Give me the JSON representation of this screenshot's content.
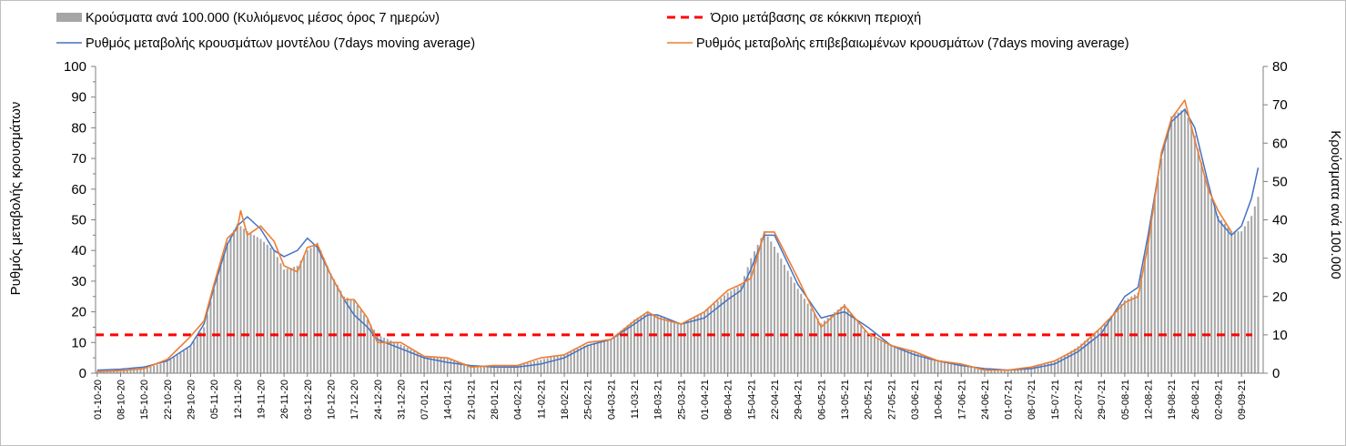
{
  "chart_data": {
    "type": "bar+line",
    "grid": false,
    "legend_position": "top",
    "colors": {
      "bars": "#a6a6a6",
      "threshold": "#ff0000",
      "model_line": "#4472c4",
      "confirmed_line": "#ed7d31"
    },
    "left_axis": {
      "label": "Ρυθμός μεταβολής κρουσμάτων",
      "min": 0,
      "max": 100,
      "ticks": [
        "0",
        "10",
        "20",
        "30",
        "40",
        "50",
        "60",
        "70",
        "80",
        "90",
        "100"
      ]
    },
    "right_axis": {
      "label": "Κρούσματα ανά 100.000",
      "min": 0,
      "max": 80,
      "ticks": [
        "0",
        "10",
        "20",
        "30",
        "40",
        "50",
        "60",
        "70",
        "80"
      ]
    },
    "x_axis": {
      "start": "2020-10-01",
      "end": "2021-09-15",
      "tick_labels": [
        "01-10-20",
        "08-10-20",
        "15-10-20",
        "22-10-20",
        "29-10-20",
        "05-11-20",
        "12-11-20",
        "19-11-20",
        "26-11-20",
        "03-12-20",
        "10-12-20",
        "17-12-20",
        "24-12-20",
        "31-12-20",
        "07-01-21",
        "14-01-21",
        "21-01-21",
        "28-01-21",
        "04-02-21",
        "11-02-21",
        "18-02-21",
        "25-02-21",
        "04-03-21",
        "11-03-21",
        "18-03-21",
        "25-03-21",
        "01-04-21",
        "08-04-21",
        "15-04-21",
        "22-04-21",
        "29-04-21",
        "06-05-21",
        "13-05-21",
        "20-05-21",
        "27-05-21",
        "03-06-21",
        "10-06-21",
        "17-06-21",
        "24-06-21",
        "01-07-21",
        "08-07-21",
        "15-07-21",
        "22-07-21",
        "29-07-21",
        "05-08-21",
        "12-08-21",
        "19-08-21",
        "26-08-21",
        "02-09-21",
        "09-09-21"
      ]
    },
    "legend": [
      {
        "key": "bars",
        "label": "Κρούσματα ανά 100.000 (Κυλιόμενος μέσος όρος 7 ημερών)"
      },
      {
        "key": "threshold",
        "label": "Όριο μετάβασης σε κόκκινη περιοχή"
      },
      {
        "key": "model_line",
        "label": "Ρυθμός μεταβολής κρουσμάτων μοντέλου (7days moving average)"
      },
      {
        "key": "confirmed_line",
        "label": "Ρυθμός μεταβολής επιβεβαιωμένων κρουσμάτων (7days moving average)"
      }
    ],
    "series": [
      {
        "name": "Κρούσματα ανά 100.000 (Κυλιόμενος μέσος όρος 7 ημερών)",
        "axis": "right",
        "kind": "bar",
        "points": [
          [
            "2020-10-01",
            0.6
          ],
          [
            "2020-10-08",
            0.7
          ],
          [
            "2020-10-15",
            1.2
          ],
          [
            "2020-10-22",
            3.0
          ],
          [
            "2020-10-29",
            7.0
          ],
          [
            "2020-11-02",
            12.0
          ],
          [
            "2020-11-05",
            22.0
          ],
          [
            "2020-11-09",
            34.0
          ],
          [
            "2020-11-12",
            39.0
          ],
          [
            "2020-11-15",
            37.0
          ],
          [
            "2020-11-19",
            35.0
          ],
          [
            "2020-11-23",
            32.0
          ],
          [
            "2020-11-26",
            27.0
          ],
          [
            "2020-11-30",
            28.0
          ],
          [
            "2020-12-03",
            32.0
          ],
          [
            "2020-12-06",
            34.0
          ],
          [
            "2020-12-10",
            26.0
          ],
          [
            "2020-12-14",
            20.0
          ],
          [
            "2020-12-17",
            19.0
          ],
          [
            "2020-12-21",
            14.0
          ],
          [
            "2020-12-24",
            10.0
          ],
          [
            "2020-12-31",
            7.5
          ],
          [
            "2021-01-07",
            4.5
          ],
          [
            "2021-01-14",
            4.0
          ],
          [
            "2021-01-21",
            2.0
          ],
          [
            "2021-01-28",
            1.5
          ],
          [
            "2021-02-04",
            2.0
          ],
          [
            "2021-02-11",
            3.5
          ],
          [
            "2021-02-18",
            5.0
          ],
          [
            "2021-02-25",
            7.5
          ],
          [
            "2021-03-04",
            9.0
          ],
          [
            "2021-03-11",
            14.0
          ],
          [
            "2021-03-15",
            16.0
          ],
          [
            "2021-03-18",
            15.0
          ],
          [
            "2021-03-25",
            13.0
          ],
          [
            "2021-04-01",
            16.0
          ],
          [
            "2021-04-08",
            21.0
          ],
          [
            "2021-04-12",
            23.0
          ],
          [
            "2021-04-15",
            30.0
          ],
          [
            "2021-04-19",
            37.0
          ],
          [
            "2021-04-22",
            33.0
          ],
          [
            "2021-04-29",
            22.0
          ],
          [
            "2021-05-06",
            13.0
          ],
          [
            "2021-05-13",
            18.0
          ],
          [
            "2021-05-20",
            10.0
          ],
          [
            "2021-05-27",
            7.5
          ],
          [
            "2021-06-03",
            5.5
          ],
          [
            "2021-06-10",
            3.5
          ],
          [
            "2021-06-17",
            2.5
          ],
          [
            "2021-06-24",
            1.0
          ],
          [
            "2021-07-01",
            0.8
          ],
          [
            "2021-07-08",
            1.8
          ],
          [
            "2021-07-15",
            3.0
          ],
          [
            "2021-07-22",
            7.0
          ],
          [
            "2021-07-29",
            12.0
          ],
          [
            "2021-08-05",
            19.0
          ],
          [
            "2021-08-09",
            21.0
          ],
          [
            "2021-08-12",
            35.0
          ],
          [
            "2021-08-16",
            56.0
          ],
          [
            "2021-08-19",
            67.0
          ],
          [
            "2021-08-23",
            69.0
          ],
          [
            "2021-08-26",
            62.0
          ],
          [
            "2021-08-30",
            48.0
          ],
          [
            "2021-09-02",
            41.0
          ],
          [
            "2021-09-06",
            37.0
          ],
          [
            "2021-09-09",
            37.0
          ],
          [
            "2021-09-12",
            41.0
          ],
          [
            "2021-09-14",
            46.0
          ]
        ]
      },
      {
        "name": "Όριο μετάβασης σε κόκκινη περιοχή",
        "axis": "left",
        "kind": "dashed-line",
        "value": 12.5
      },
      {
        "name": "Ρυθμός μεταβολής κρουσμάτων μοντέλου (7days moving average)",
        "axis": "left",
        "kind": "line",
        "points": [
          [
            "2020-10-01",
            1
          ],
          [
            "2020-10-08",
            1.3
          ],
          [
            "2020-10-15",
            2
          ],
          [
            "2020-10-22",
            4
          ],
          [
            "2020-10-29",
            9
          ],
          [
            "2020-11-02",
            16
          ],
          [
            "2020-11-05",
            28
          ],
          [
            "2020-11-09",
            42
          ],
          [
            "2020-11-12",
            48
          ],
          [
            "2020-11-15",
            51
          ],
          [
            "2020-11-19",
            47
          ],
          [
            "2020-11-23",
            40
          ],
          [
            "2020-11-26",
            38
          ],
          [
            "2020-11-30",
            40
          ],
          [
            "2020-12-03",
            44
          ],
          [
            "2020-12-06",
            41
          ],
          [
            "2020-12-10",
            32
          ],
          [
            "2020-12-14",
            24
          ],
          [
            "2020-12-17",
            19
          ],
          [
            "2020-12-21",
            15
          ],
          [
            "2020-12-24",
            11
          ],
          [
            "2020-12-31",
            8
          ],
          [
            "2021-01-07",
            5
          ],
          [
            "2021-01-14",
            3.5
          ],
          [
            "2021-01-21",
            2.5
          ],
          [
            "2021-01-28",
            2
          ],
          [
            "2021-02-04",
            2
          ],
          [
            "2021-02-11",
            3
          ],
          [
            "2021-02-18",
            5
          ],
          [
            "2021-02-25",
            9
          ],
          [
            "2021-03-04",
            11
          ],
          [
            "2021-03-11",
            16
          ],
          [
            "2021-03-15",
            19
          ],
          [
            "2021-03-18",
            19
          ],
          [
            "2021-03-25",
            16
          ],
          [
            "2021-04-01",
            18
          ],
          [
            "2021-04-08",
            24
          ],
          [
            "2021-04-12",
            27
          ],
          [
            "2021-04-15",
            34
          ],
          [
            "2021-04-19",
            45
          ],
          [
            "2021-04-22",
            45
          ],
          [
            "2021-04-29",
            29
          ],
          [
            "2021-05-06",
            18
          ],
          [
            "2021-05-13",
            20
          ],
          [
            "2021-05-20",
            15
          ],
          [
            "2021-05-27",
            9
          ],
          [
            "2021-06-03",
            6
          ],
          [
            "2021-06-10",
            4
          ],
          [
            "2021-06-17",
            2.5
          ],
          [
            "2021-06-24",
            1.5
          ],
          [
            "2021-07-01",
            1
          ],
          [
            "2021-07-08",
            1.5
          ],
          [
            "2021-07-15",
            3
          ],
          [
            "2021-07-22",
            7
          ],
          [
            "2021-07-29",
            13
          ],
          [
            "2021-08-05",
            25
          ],
          [
            "2021-08-09",
            28
          ],
          [
            "2021-08-12",
            45
          ],
          [
            "2021-08-16",
            71
          ],
          [
            "2021-08-19",
            82
          ],
          [
            "2021-08-23",
            86
          ],
          [
            "2021-08-26",
            80
          ],
          [
            "2021-08-30",
            62
          ],
          [
            "2021-09-02",
            50
          ],
          [
            "2021-09-06",
            45
          ],
          [
            "2021-09-09",
            48
          ],
          [
            "2021-09-12",
            57
          ],
          [
            "2021-09-14",
            67
          ]
        ]
      },
      {
        "name": "Ρυθμός μεταβολής επιβεβαιωμένων κρουσμάτων (7days moving average)",
        "axis": "left",
        "kind": "line",
        "points": [
          [
            "2020-10-01",
            0.5
          ],
          [
            "2020-10-08",
            0.8
          ],
          [
            "2020-10-15",
            1.5
          ],
          [
            "2020-10-22",
            4.5
          ],
          [
            "2020-10-29",
            12
          ],
          [
            "2020-11-02",
            17
          ],
          [
            "2020-11-05",
            29
          ],
          [
            "2020-11-09",
            44
          ],
          [
            "2020-11-12",
            47
          ],
          [
            "2020-11-13",
            53
          ],
          [
            "2020-11-15",
            45
          ],
          [
            "2020-11-19",
            48
          ],
          [
            "2020-11-23",
            43
          ],
          [
            "2020-11-26",
            35
          ],
          [
            "2020-11-30",
            33
          ],
          [
            "2020-12-03",
            41
          ],
          [
            "2020-12-06",
            42
          ],
          [
            "2020-12-10",
            32
          ],
          [
            "2020-12-14",
            24
          ],
          [
            "2020-12-17",
            24
          ],
          [
            "2020-12-21",
            18
          ],
          [
            "2020-12-24",
            10
          ],
          [
            "2020-12-31",
            10
          ],
          [
            "2021-01-07",
            5.5
          ],
          [
            "2021-01-14",
            5
          ],
          [
            "2021-01-21",
            2
          ],
          [
            "2021-01-28",
            2.5
          ],
          [
            "2021-02-04",
            2.5
          ],
          [
            "2021-02-11",
            5
          ],
          [
            "2021-02-18",
            6
          ],
          [
            "2021-02-25",
            10
          ],
          [
            "2021-03-04",
            11
          ],
          [
            "2021-03-11",
            17
          ],
          [
            "2021-03-15",
            20
          ],
          [
            "2021-03-18",
            18
          ],
          [
            "2021-03-25",
            16
          ],
          [
            "2021-04-01",
            20
          ],
          [
            "2021-04-08",
            27
          ],
          [
            "2021-04-12",
            29
          ],
          [
            "2021-04-15",
            31
          ],
          [
            "2021-04-19",
            46
          ],
          [
            "2021-04-22",
            46
          ],
          [
            "2021-04-29",
            31
          ],
          [
            "2021-05-06",
            15
          ],
          [
            "2021-05-13",
            22
          ],
          [
            "2021-05-20",
            13
          ],
          [
            "2021-05-27",
            9
          ],
          [
            "2021-06-03",
            7
          ],
          [
            "2021-06-10",
            4
          ],
          [
            "2021-06-17",
            3
          ],
          [
            "2021-06-24",
            1
          ],
          [
            "2021-07-01",
            1
          ],
          [
            "2021-07-08",
            2
          ],
          [
            "2021-07-15",
            4
          ],
          [
            "2021-07-22",
            8
          ],
          [
            "2021-07-29",
            15
          ],
          [
            "2021-08-05",
            23
          ],
          [
            "2021-08-09",
            25
          ],
          [
            "2021-08-12",
            42
          ],
          [
            "2021-08-16",
            72
          ],
          [
            "2021-08-19",
            83
          ],
          [
            "2021-08-23",
            89
          ],
          [
            "2021-08-26",
            76
          ],
          [
            "2021-08-30",
            60
          ],
          [
            "2021-09-02",
            53
          ],
          [
            "2021-09-06",
            46
          ]
        ]
      }
    ]
  }
}
